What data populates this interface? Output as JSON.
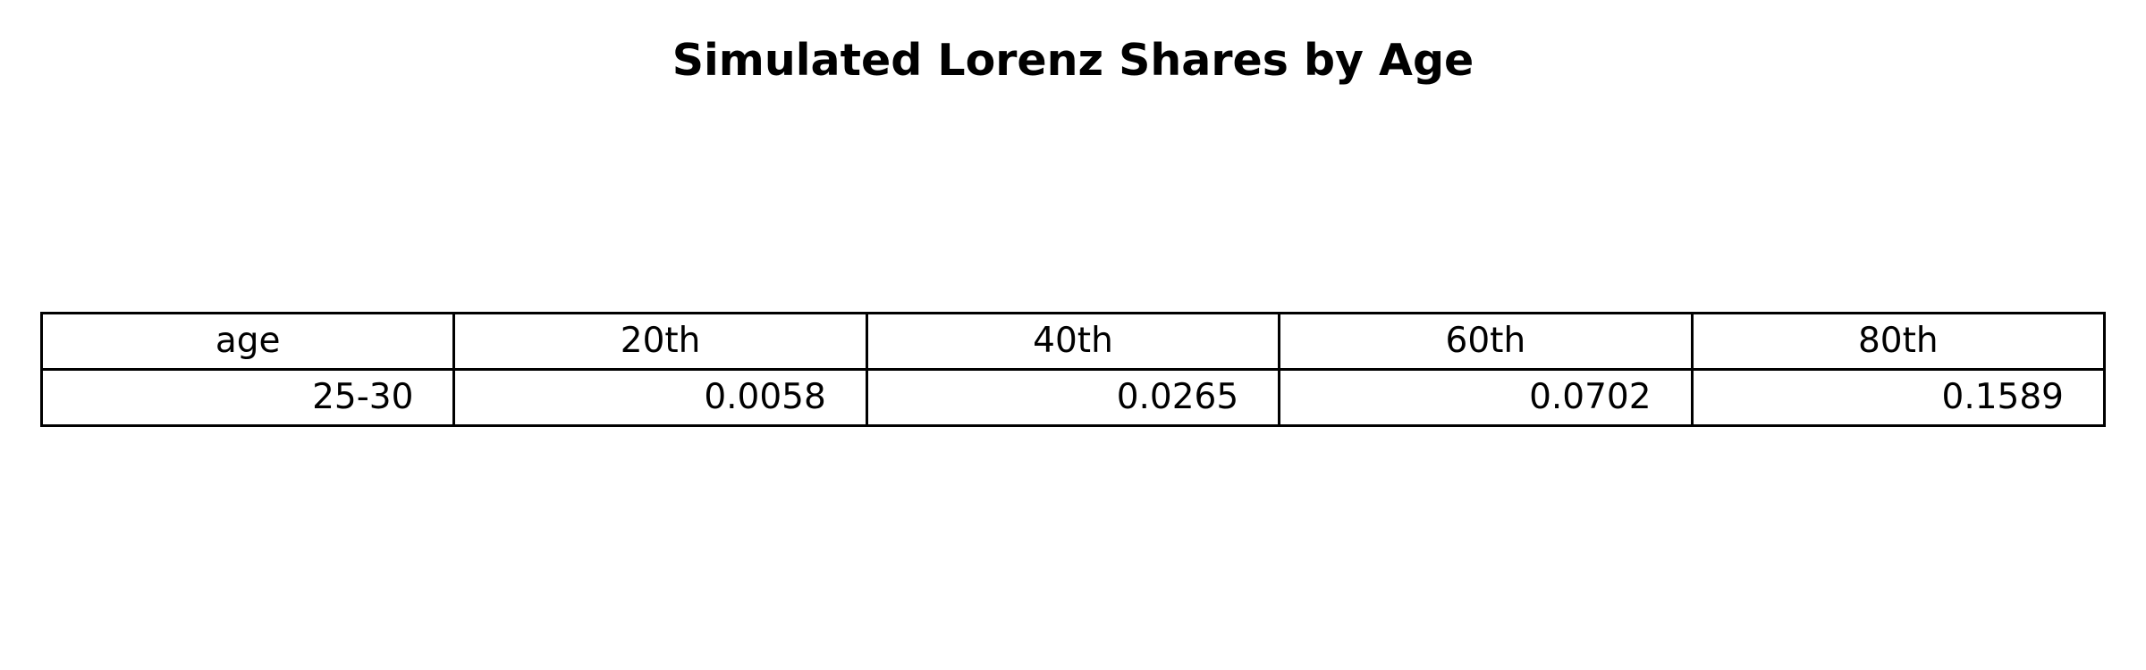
{
  "chart_data": {
    "type": "table",
    "title": "Simulated Lorenz Shares by Age",
    "columns": [
      "age",
      "20th",
      "40th",
      "60th",
      "80th"
    ],
    "rows": [
      [
        "25-30",
        "0.0058",
        "0.0265",
        "0.0702",
        "0.1589"
      ]
    ]
  }
}
